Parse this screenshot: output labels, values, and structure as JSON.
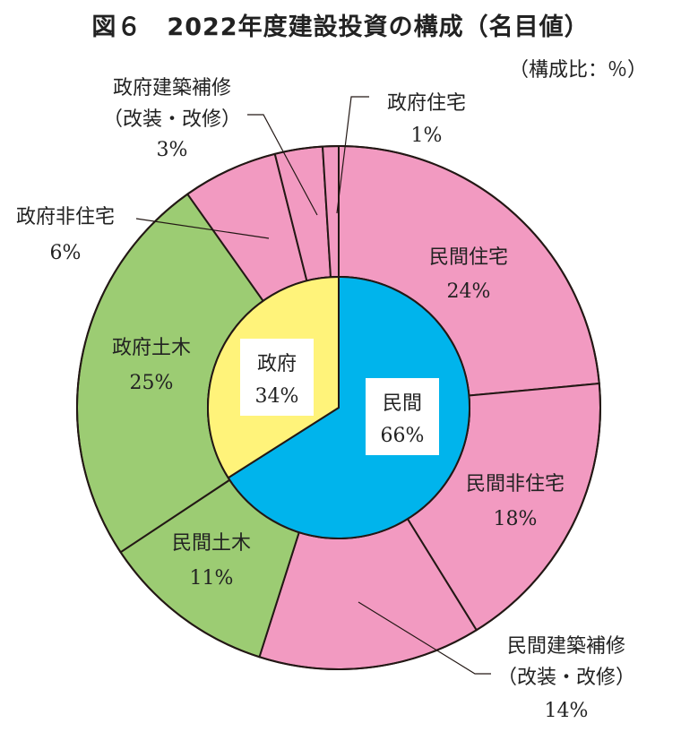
{
  "title": "図６　2022年度建設投資の構成（名目値）",
  "unit": "（構成比：％）",
  "colors": {
    "private_outer": "#f29ac1",
    "gov_building": "#f29ac1",
    "civil": "#9ccc73",
    "inner_private": "#00b4ec",
    "inner_gov": "#fff37a",
    "stroke": "#231815"
  },
  "chart_data": {
    "type": "pie",
    "subtype": "nested-donut",
    "inner": [
      {
        "name": "民間",
        "value": 66,
        "label": "66%"
      },
      {
        "name": "政府",
        "value": 34,
        "label": "34%"
      }
    ],
    "outer": [
      {
        "name": "民間住宅",
        "value": 24,
        "label": "24%"
      },
      {
        "name": "民間非住宅",
        "value": 18,
        "label": "18%"
      },
      {
        "name": "民間建築補修（改装・改修）",
        "value": 14,
        "label": "14%"
      },
      {
        "name": "民間土木",
        "value": 11,
        "label": "11%"
      },
      {
        "name": "政府土木",
        "value": 25,
        "label": "25%"
      },
      {
        "name": "政府非住宅",
        "value": 6,
        "label": "6%"
      },
      {
        "name": "政府建築補修（改装・改修）",
        "value": 3,
        "label": "3%"
      },
      {
        "name": "政府住宅",
        "value": 1,
        "label": "1%"
      }
    ]
  },
  "labels": {
    "min_jutaku": {
      "name": "民間住宅",
      "pct": "24%"
    },
    "min_hijutaku": {
      "name": "民間非住宅",
      "pct": "18%"
    },
    "min_hoshu": {
      "name1": "民間建築補修",
      "name2": "（改装・改修）",
      "pct": "14%"
    },
    "min_doboku": {
      "name": "民間土木",
      "pct": "11%"
    },
    "gov_doboku": {
      "name": "政府土木",
      "pct": "25%"
    },
    "gov_hijutaku": {
      "name": "政府非住宅",
      "pct": "6%"
    },
    "gov_hoshu": {
      "name1": "政府建築補修",
      "name2": "（改装・改修）",
      "pct": "3%"
    },
    "gov_jutaku": {
      "name": "政府住宅",
      "pct": "1%"
    },
    "inner_min": {
      "name": "民間",
      "pct": "66%"
    },
    "inner_gov": {
      "name": "政府",
      "pct": "34%"
    }
  }
}
